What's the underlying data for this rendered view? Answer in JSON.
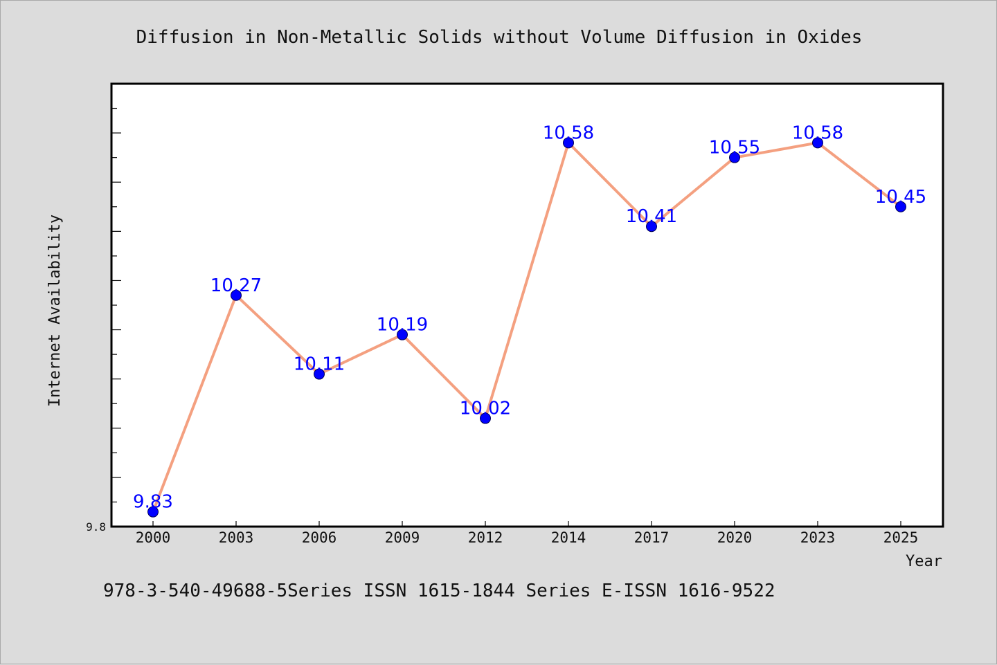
{
  "chart_data": {
    "type": "line",
    "title": "Diffusion in Non-Metallic Solids without Volume Diffusion in Oxides",
    "xlabel": "Year",
    "ylabel": "Internet Availability",
    "categories": [
      "2000",
      "2003",
      "2006",
      "2009",
      "2012",
      "2014",
      "2017",
      "2020",
      "2023",
      "2025"
    ],
    "series": [
      {
        "values": [
          9.83,
          10.27,
          10.11,
          10.19,
          10.02,
          10.58,
          10.41,
          10.55,
          10.58,
          10.45
        ],
        "labels": [
          "9.83",
          "10.27",
          "10.11",
          "10.19",
          "10.02",
          "10.58",
          "10.41",
          "10.55",
          "10.58",
          "10.45"
        ]
      }
    ],
    "ylim": [
      9.8,
      10.7
    ],
    "y_tick_labels": [
      "9.8"
    ],
    "grid": false,
    "legend": "none",
    "colors": {
      "line": "#f4a080",
      "marker": "#0000ff",
      "data_label": "#0000ff",
      "plot_background": "#ffffff",
      "figure_background": "#dcdcdc"
    }
  },
  "footer": {
    "text": "978-3-540-49688-5Series ISSN 1615-1844 Series E-ISSN 1616-9522"
  }
}
